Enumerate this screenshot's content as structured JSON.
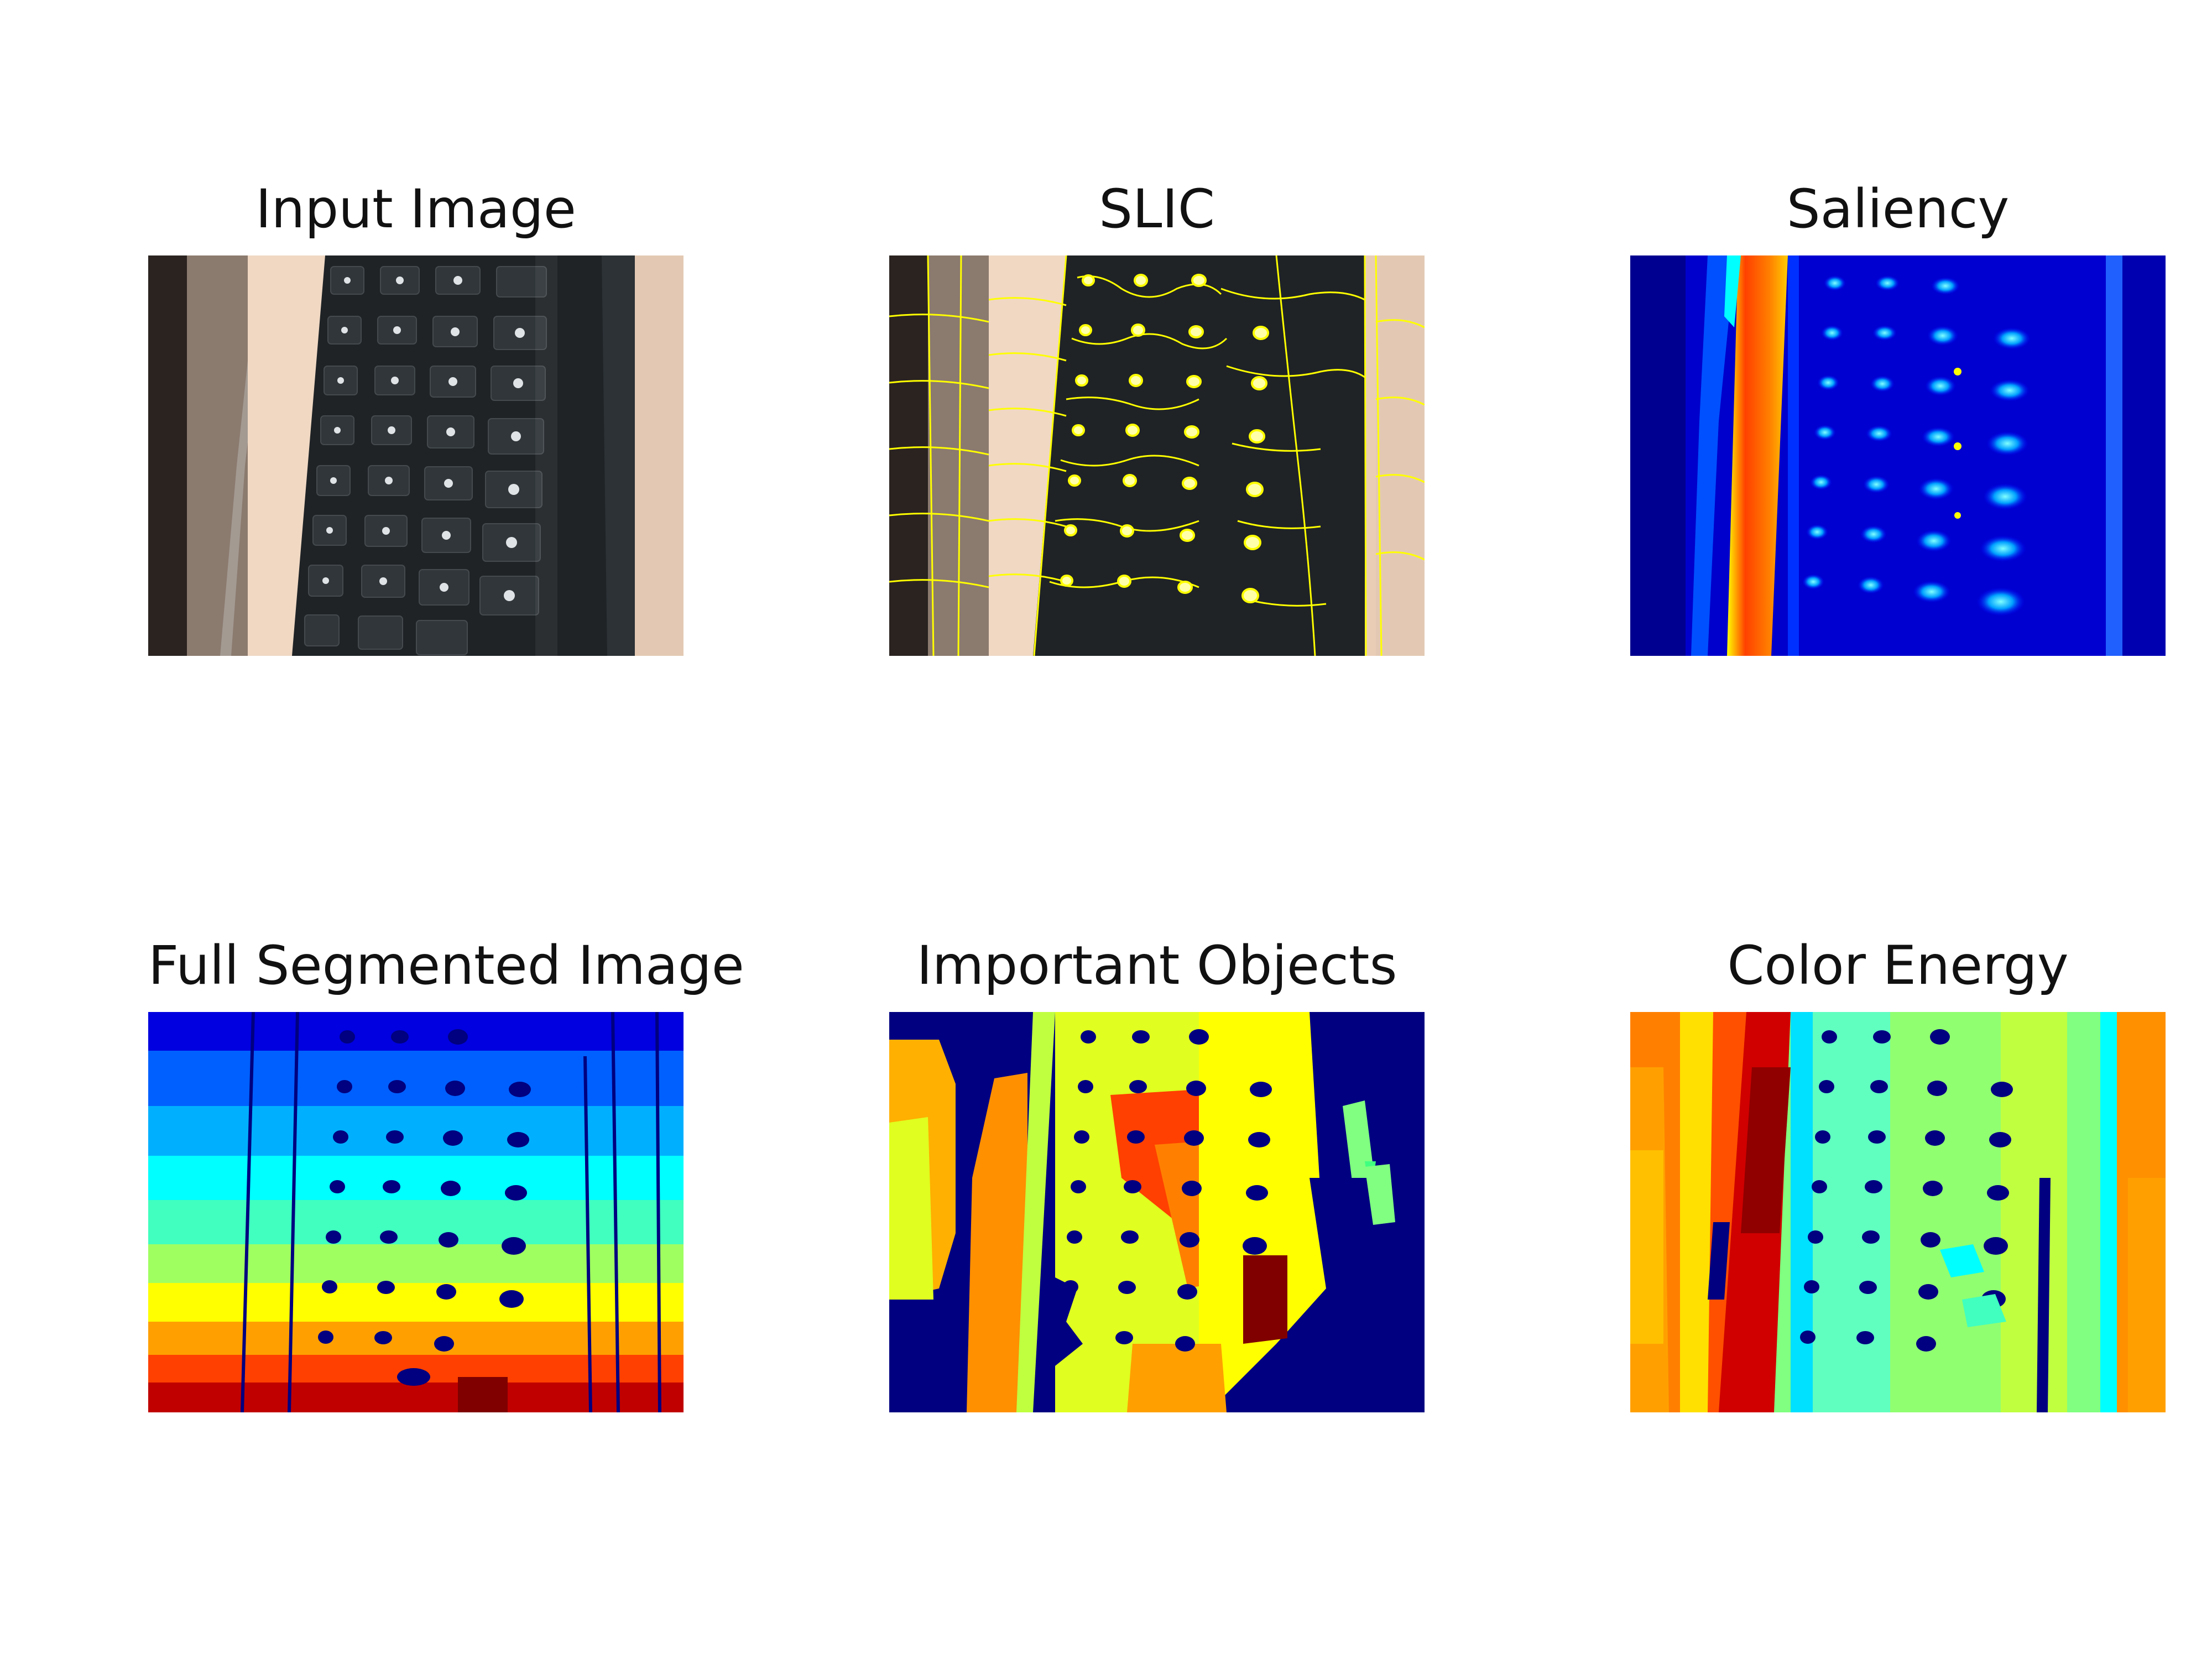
{
  "figure": {
    "panels": [
      {
        "id": "input",
        "title": "Input Image"
      },
      {
        "id": "slic",
        "title": "SLIC"
      },
      {
        "id": "saliency",
        "title": "Saliency"
      },
      {
        "id": "segmented",
        "title": "Full Segmented Image"
      },
      {
        "id": "important",
        "title": "Important Objects"
      },
      {
        "id": "energy",
        "title": "Color Energy"
      }
    ]
  },
  "colors": {
    "jet_dark_blue": "#000080",
    "jet_blue": "#0000ff",
    "jet_cyan": "#00ffff",
    "jet_green": "#80ff80",
    "jet_yellow": "#ffff00",
    "jet_orange": "#ff8000",
    "jet_red": "#ff0000",
    "jet_dark_red": "#800000",
    "slic_boundary": "#ffff00",
    "keyboard": "#1f2326",
    "wood": "#e9cdb5"
  }
}
